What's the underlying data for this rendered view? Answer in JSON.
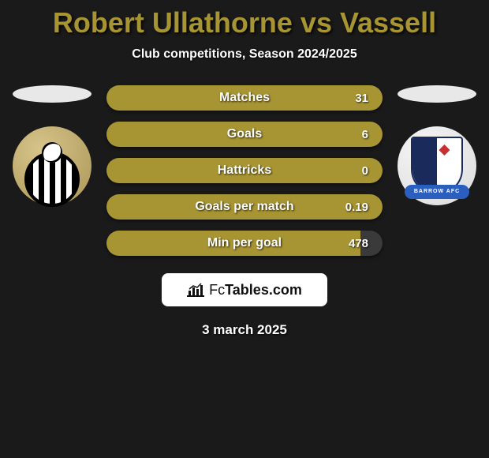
{
  "title_color": "#a79432",
  "bar_color": "#a79432",
  "title": "Robert Ullathorne vs Vassell",
  "subtitle": "Club competitions, Season 2024/2025",
  "date": "3 march 2025",
  "logo": {
    "prefix": "Fc",
    "suffix": "Tables.com"
  },
  "left_badge": {
    "banner": ""
  },
  "right_badge": {
    "banner": "BARROW AFC"
  },
  "stats": [
    {
      "label": "Matches",
      "value": "31",
      "fill": 1.0
    },
    {
      "label": "Goals",
      "value": "6",
      "fill": 1.0
    },
    {
      "label": "Hattricks",
      "value": "0",
      "fill": 1.0
    },
    {
      "label": "Goals per match",
      "value": "0.19",
      "fill": 1.0
    },
    {
      "label": "Min per goal",
      "value": "478",
      "fill": 0.92
    }
  ]
}
